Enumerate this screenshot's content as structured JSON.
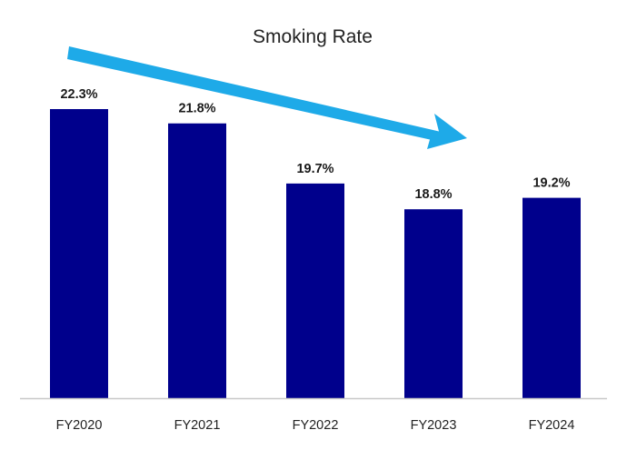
{
  "chart_data": {
    "type": "bar",
    "title": "Smoking Rate",
    "categories": [
      "FY2020",
      "FY2021",
      "FY2022",
      "FY2023",
      "FY2024"
    ],
    "values": [
      22.3,
      21.8,
      19.7,
      18.8,
      19.2
    ],
    "data_labels": [
      "22.3%",
      "21.8%",
      "19.7%",
      "18.8%",
      "19.2%"
    ],
    "unit": "%",
    "xlabel": "",
    "ylabel": "",
    "ylim": [
      12.2,
      22.3
    ],
    "grid": false,
    "legend": "none",
    "annotation": "downward-trend-arrow",
    "colors": {
      "bar": "#00008C",
      "arrow": "#1EAAE8",
      "axis": "#C8C8C8"
    }
  }
}
